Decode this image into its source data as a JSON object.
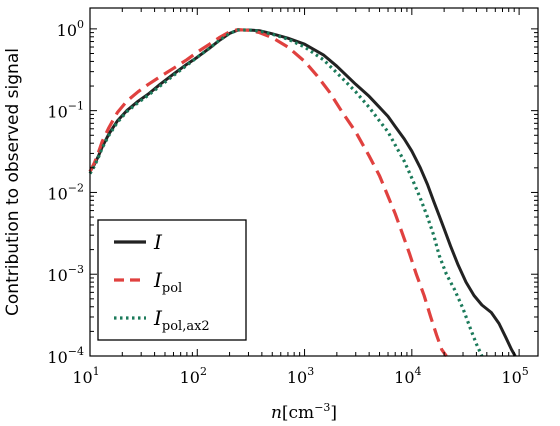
{
  "chart_data": {
    "type": "line",
    "xlabel": "n[cm^-3]",
    "xlabel_parts": {
      "var": "n",
      "open": "[cm",
      "exp": "−3",
      "close": "]"
    },
    "ylabel": "Contribution to observed signal",
    "xscale": "log",
    "yscale": "log",
    "xlim": [
      10,
      150000
    ],
    "ylim": [
      0.0001,
      1.8
    ],
    "x_ticks": [
      10,
      100,
      1000,
      10000,
      100000
    ],
    "x_tick_labels": [
      {
        "base": "10",
        "exp": "1"
      },
      {
        "base": "10",
        "exp": "2"
      },
      {
        "base": "10",
        "exp": "3"
      },
      {
        "base": "10",
        "exp": "4"
      },
      {
        "base": "10",
        "exp": "5"
      }
    ],
    "y_ticks": [
      0.0001,
      0.001,
      0.01,
      0.1,
      1
    ],
    "y_tick_labels": [
      {
        "base": "10",
        "exp": "−4"
      },
      {
        "base": "10",
        "exp": "−3"
      },
      {
        "base": "10",
        "exp": "−2"
      },
      {
        "base": "10",
        "exp": "−1"
      },
      {
        "base": "10",
        "exp": "0"
      }
    ],
    "grid": false,
    "legend_position": "lower-left",
    "series": [
      {
        "name": "I",
        "legend_main": "I",
        "legend_sub": "",
        "color": "#222222",
        "style": "solid",
        "points": [
          [
            10,
            0.018
          ],
          [
            11,
            0.022
          ],
          [
            12,
            0.028
          ],
          [
            13,
            0.036
          ],
          [
            15,
            0.052
          ],
          [
            18,
            0.075
          ],
          [
            22,
            0.1
          ],
          [
            28,
            0.13
          ],
          [
            35,
            0.16
          ],
          [
            45,
            0.21
          ],
          [
            60,
            0.28
          ],
          [
            80,
            0.37
          ],
          [
            100,
            0.45
          ],
          [
            130,
            0.58
          ],
          [
            160,
            0.72
          ],
          [
            200,
            0.88
          ],
          [
            240,
            0.97
          ],
          [
            300,
            0.97
          ],
          [
            380,
            0.95
          ],
          [
            500,
            0.87
          ],
          [
            700,
            0.77
          ],
          [
            1000,
            0.65
          ],
          [
            1500,
            0.48
          ],
          [
            2000,
            0.35
          ],
          [
            3000,
            0.21
          ],
          [
            4000,
            0.15
          ],
          [
            5000,
            0.11
          ],
          [
            6000,
            0.085
          ],
          [
            7000,
            0.064
          ],
          [
            8500,
            0.045
          ],
          [
            10000,
            0.032
          ],
          [
            12000,
            0.02
          ],
          [
            14000,
            0.0125
          ],
          [
            16000,
            0.0078
          ],
          [
            18000,
            0.0052
          ],
          [
            20000,
            0.0036
          ],
          [
            23000,
            0.0022
          ],
          [
            27000,
            0.0013
          ],
          [
            32000,
            0.0008
          ],
          [
            38000,
            0.00055
          ],
          [
            45000,
            0.00042
          ],
          [
            55000,
            0.00034
          ],
          [
            65000,
            0.00025
          ],
          [
            75000,
            0.00017
          ],
          [
            85000,
            0.00012
          ],
          [
            92000,
            0.0001
          ]
        ]
      },
      {
        "name": "I_pol",
        "legend_main": "I",
        "legend_sub": "pol",
        "color": "#e0413f",
        "style": "dashed",
        "points": [
          [
            10,
            0.018
          ],
          [
            11,
            0.023
          ],
          [
            12,
            0.031
          ],
          [
            13,
            0.042
          ],
          [
            15,
            0.062
          ],
          [
            18,
            0.095
          ],
          [
            22,
            0.13
          ],
          [
            28,
            0.17
          ],
          [
            35,
            0.21
          ],
          [
            45,
            0.26
          ],
          [
            60,
            0.33
          ],
          [
            80,
            0.42
          ],
          [
            100,
            0.52
          ],
          [
            130,
            0.65
          ],
          [
            160,
            0.78
          ],
          [
            200,
            0.92
          ],
          [
            240,
            0.98
          ],
          [
            300,
            0.96
          ],
          [
            380,
            0.9
          ],
          [
            500,
            0.78
          ],
          [
            700,
            0.6
          ],
          [
            1000,
            0.4
          ],
          [
            1300,
            0.27
          ],
          [
            1700,
            0.17
          ],
          [
            2200,
            0.1
          ],
          [
            3000,
            0.055
          ],
          [
            4000,
            0.028
          ],
          [
            5000,
            0.016
          ],
          [
            6000,
            0.009
          ],
          [
            7000,
            0.0055
          ],
          [
            8000,
            0.0034
          ],
          [
            9500,
            0.0018
          ],
          [
            11000,
            0.001
          ],
          [
            13000,
            0.00055
          ],
          [
            15000,
            0.0003
          ],
          [
            17000,
            0.00018
          ],
          [
            19000,
            0.00012
          ],
          [
            21000,
            0.0001
          ]
        ]
      },
      {
        "name": "I_pol,ax2",
        "legend_main": "I",
        "legend_sub": "pol,ax2",
        "color": "#1b7a5a",
        "style": "dotted",
        "points": [
          [
            10,
            0.017
          ],
          [
            11,
            0.021
          ],
          [
            12,
            0.027
          ],
          [
            13,
            0.035
          ],
          [
            15,
            0.05
          ],
          [
            18,
            0.072
          ],
          [
            22,
            0.097
          ],
          [
            28,
            0.125
          ],
          [
            35,
            0.155
          ],
          [
            45,
            0.2
          ],
          [
            60,
            0.27
          ],
          [
            80,
            0.36
          ],
          [
            100,
            0.45
          ],
          [
            130,
            0.58
          ],
          [
            160,
            0.72
          ],
          [
            200,
            0.88
          ],
          [
            240,
            0.97
          ],
          [
            300,
            0.97
          ],
          [
            380,
            0.94
          ],
          [
            500,
            0.86
          ],
          [
            700,
            0.75
          ],
          [
            1000,
            0.6
          ],
          [
            1500,
            0.42
          ],
          [
            2000,
            0.29
          ],
          [
            3000,
            0.17
          ],
          [
            4000,
            0.11
          ],
          [
            5000,
            0.075
          ],
          [
            6000,
            0.055
          ],
          [
            7000,
            0.038
          ],
          [
            8500,
            0.024
          ],
          [
            10000,
            0.015
          ],
          [
            12000,
            0.0085
          ],
          [
            14000,
            0.005
          ],
          [
            16000,
            0.003
          ],
          [
            18000,
            0.0017
          ],
          [
            21000,
            0.001
          ],
          [
            25000,
            0.00065
          ],
          [
            30000,
            0.00038
          ],
          [
            35000,
            0.00022
          ],
          [
            40000,
            0.00014
          ],
          [
            45000,
            0.0001
          ]
        ]
      }
    ]
  }
}
